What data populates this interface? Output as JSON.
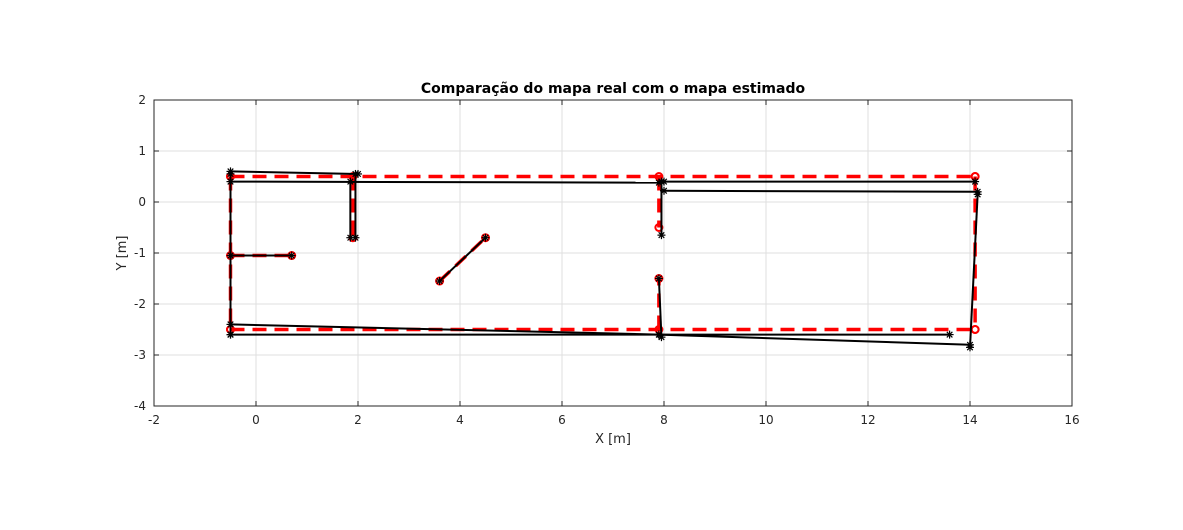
{
  "chart_data": {
    "type": "line",
    "title": "Comparação do mapa real com o mapa estimado",
    "xlabel": "X [m]",
    "ylabel": "Y [m]",
    "xlim": [
      -2,
      16
    ],
    "ylim": [
      -4,
      2
    ],
    "xticks": [
      "-2",
      "0",
      "2",
      "4",
      "6",
      "8",
      "10",
      "12",
      "14",
      "16"
    ],
    "yticks": [
      "-4",
      "-3",
      "-2",
      "-1",
      "0",
      "1",
      "2"
    ],
    "grid": true,
    "legend": "none",
    "colors": {
      "real": "#ff0000",
      "estimated": "#000000",
      "grid": "#dfdfdf",
      "axes": "#262626"
    },
    "series": [
      {
        "style": "red dashed, circle markers",
        "segments": [
          [
            [
              -0.5,
              0.5
            ],
            [
              14.1,
              0.5
            ]
          ],
          [
            [
              14.1,
              0.5
            ],
            [
              14.1,
              -2.5
            ]
          ],
          [
            [
              -0.5,
              -2.5
            ],
            [
              14.1,
              -2.5
            ]
          ],
          [
            [
              -0.5,
              0.5
            ],
            [
              -0.5,
              -2.5
            ]
          ],
          [
            [
              1.9,
              0.5
            ],
            [
              1.9,
              -0.7
            ]
          ],
          [
            [
              7.9,
              0.5
            ],
            [
              7.9,
              -0.5
            ]
          ],
          [
            [
              7.9,
              -2.5
            ],
            [
              7.9,
              -1.5
            ]
          ],
          [
            [
              -0.5,
              -1.05
            ],
            [
              0.7,
              -1.05
            ]
          ],
          [
            [
              3.6,
              -1.55
            ],
            [
              4.5,
              -0.7
            ]
          ]
        ]
      },
      {
        "style": "black solid, asterisk markers",
        "segments": [
          [
            [
              -0.5,
              0.6
            ],
            [
              2.0,
              0.55
            ]
          ],
          [
            [
              -0.5,
              0.4
            ],
            [
              7.9,
              0.38
            ]
          ],
          [
            [
              8.0,
              0.4
            ],
            [
              14.1,
              0.4
            ]
          ],
          [
            [
              8.0,
              0.22
            ],
            [
              14.15,
              0.2
            ]
          ],
          [
            [
              -0.5,
              0.55
            ],
            [
              -0.5,
              -2.6
            ]
          ],
          [
            [
              1.95,
              0.55
            ],
            [
              1.95,
              -0.7
            ]
          ],
          [
            [
              1.85,
              0.4
            ],
            [
              1.85,
              -0.7
            ]
          ],
          [
            [
              7.95,
              0.4
            ],
            [
              7.95,
              -0.65
            ]
          ],
          [
            [
              7.9,
              -1.5
            ],
            [
              7.95,
              -2.65
            ]
          ],
          [
            [
              14.15,
              0.15
            ],
            [
              14.0,
              -2.85
            ]
          ],
          [
            [
              -0.5,
              -1.05
            ],
            [
              0.7,
              -1.05
            ]
          ],
          [
            [
              3.6,
              -1.55
            ],
            [
              4.5,
              -0.7
            ]
          ],
          [
            [
              -0.5,
              -2.4
            ],
            [
              7.9,
              -2.6
            ]
          ],
          [
            [
              -0.5,
              -2.6
            ],
            [
              13.6,
              -2.6
            ]
          ],
          [
            [
              7.9,
              -2.6
            ],
            [
              14.0,
              -2.8
            ]
          ]
        ]
      }
    ]
  }
}
